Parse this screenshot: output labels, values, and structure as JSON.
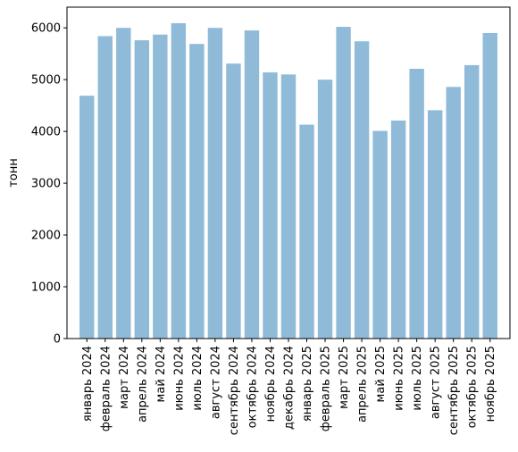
{
  "chart_data": {
    "type": "bar",
    "title": "",
    "xlabel": "",
    "ylabel": "тонн",
    "ylim": [
      0,
      6400
    ],
    "yticks": [
      0,
      1000,
      2000,
      3000,
      4000,
      5000,
      6000
    ],
    "grid": false,
    "bar_color": "#8fbbd9",
    "categories": [
      "январь 2024",
      "февраль 2024",
      "март 2024",
      "апрель 2024",
      "май 2024",
      "июнь 2024",
      "июль 2024",
      "август 2024",
      "сентябрь 2024",
      "октябрь 2024",
      "ноябрь 2024",
      "декабрь 2024",
      "январь 2025",
      "февраль 2025",
      "март 2025",
      "апрель 2025",
      "май 2025",
      "июнь 2025",
      "июль 2025",
      "август 2025",
      "сентябрь 2025",
      "октябрь 2025",
      "ноябрь 2025"
    ],
    "values": [
      4690,
      5840,
      6000,
      5760,
      5870,
      6090,
      5690,
      6000,
      5310,
      5950,
      5140,
      5100,
      4130,
      5000,
      6020,
      5740,
      4010,
      4210,
      5210,
      4410,
      4860,
      5280,
      5900
    ]
  }
}
